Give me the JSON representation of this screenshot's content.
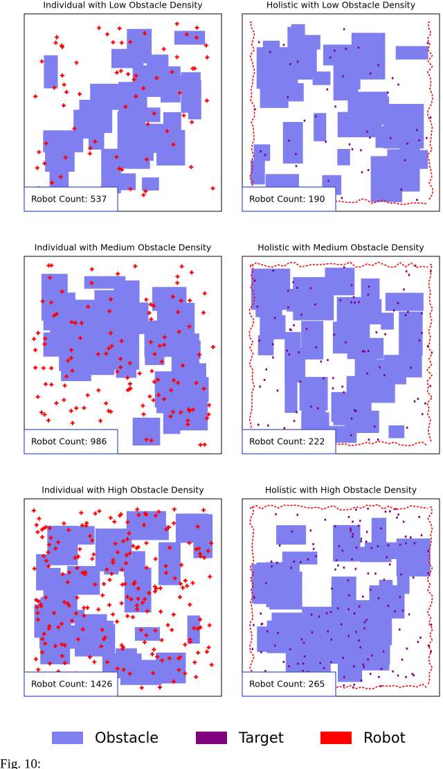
{
  "panels": [
    {
      "title": "Individual with Low Obstacle Density",
      "robot_count": "Robot Count: 537"
    },
    {
      "title": "Holistic with Low Obstacle Density",
      "robot_count": "Robot Count: 190"
    },
    {
      "title": "Individual with Medium Obstacle Density",
      "robot_count": "Robot Count: 986"
    },
    {
      "title": "Holistic with Medium Obstacle Density",
      "robot_count": "Robot Count: 222"
    },
    {
      "title": "Individual with High Obstacle Density",
      "robot_count": "Robot Count: 1426"
    },
    {
      "title": "Holistic with High Obstacle Density",
      "robot_count": "Robot Count: 265"
    }
  ],
  "legend": [
    {
      "name": "Obstacle",
      "color": "#7f7ff0"
    },
    {
      "name": "Target",
      "color": "#800080"
    },
    {
      "name": "Robot",
      "color": "#ff0000"
    }
  ],
  "caption": "Fig. 10:"
}
